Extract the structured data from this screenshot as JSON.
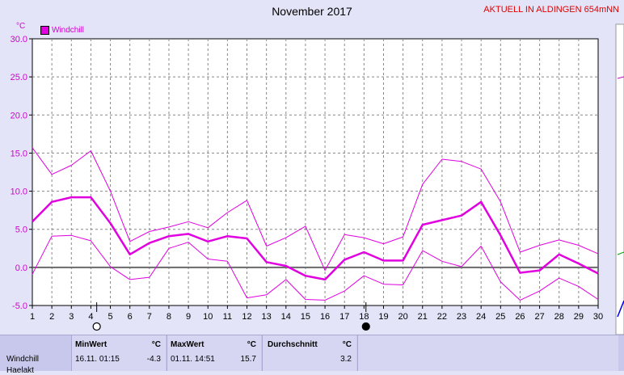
{
  "chart_data": {
    "type": "line",
    "title": "November 2017",
    "station": "AKTUELL IN ALDINGEN 654mNN",
    "unit": "°C",
    "x": [
      1,
      2,
      3,
      4,
      5,
      6,
      7,
      8,
      9,
      10,
      11,
      12,
      13,
      14,
      15,
      16,
      17,
      18,
      19,
      20,
      21,
      22,
      23,
      24,
      25,
      26,
      27,
      28,
      29,
      30
    ],
    "xlim": [
      1,
      30
    ],
    "ylim": [
      -5,
      30
    ],
    "yticks": [
      "30.0",
      "25.0",
      "20.0",
      "15.0",
      "10.0",
      "5.0",
      "0.0",
      "-5.0"
    ],
    "grid": true,
    "legend": "top-left",
    "series": [
      {
        "name": "Windchill",
        "role": "average",
        "color": "#e000e0",
        "values": [
          6.0,
          8.6,
          9.2,
          9.2,
          5.8,
          1.7,
          3.2,
          4.1,
          4.4,
          3.4,
          4.1,
          3.8,
          0.7,
          0.2,
          -1.1,
          -1.6,
          1.0,
          2.0,
          0.9,
          0.9,
          5.6,
          6.2,
          6.8,
          8.6,
          4.2,
          -0.7,
          -0.4,
          1.7,
          0.5,
          -0.8
        ]
      },
      {
        "role": "max",
        "color": "#e000e0",
        "values": [
          15.7,
          12.2,
          13.4,
          15.3,
          10.0,
          3.4,
          4.7,
          5.3,
          6.0,
          5.2,
          7.2,
          8.8,
          2.8,
          3.9,
          5.4,
          -0.4,
          4.3,
          3.9,
          3.1,
          4.0,
          10.9,
          14.2,
          13.9,
          12.9,
          8.6,
          2.0,
          2.9,
          3.6,
          2.9,
          1.8
        ]
      },
      {
        "role": "min",
        "color": "#e000e0",
        "values": [
          -0.9,
          4.1,
          4.2,
          3.5,
          0.1,
          -1.6,
          -1.3,
          2.5,
          3.3,
          1.1,
          0.8,
          -4.0,
          -3.6,
          -1.6,
          -4.2,
          -4.3,
          -3.1,
          -1.1,
          -2.2,
          -2.3,
          2.2,
          0.8,
          0.1,
          2.8,
          -1.9,
          -4.3,
          -3.1,
          -1.4,
          -2.5,
          -4.2
        ]
      }
    ],
    "markers": [
      {
        "day": 4.3,
        "symbol": "open-circle"
      },
      {
        "day": 18.1,
        "symbol": "filled-circle"
      }
    ],
    "zero_line_color": "#6a6a6a",
    "plot_bg": "#ffffff"
  },
  "table": {
    "row1": "Windchill",
    "row2": "Haelakt",
    "min_header": "MinWert",
    "max_header": "MaxWert",
    "avg_header": "Durchschnitt",
    "unit_header": "°C",
    "min_time": "16.11.  01:15",
    "min_value": "-4.3",
    "max_time": "01.11.  14:51",
    "max_value": "15.7",
    "avg_value": "3.2"
  }
}
